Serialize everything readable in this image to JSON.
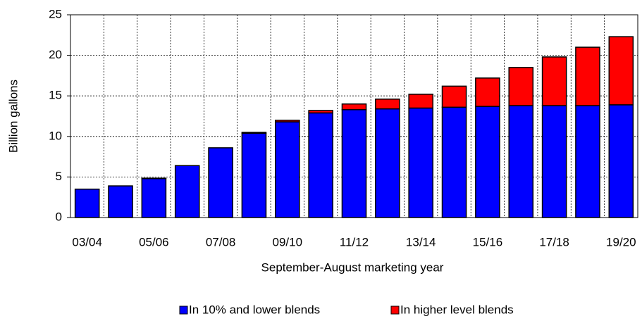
{
  "chart_data": {
    "type": "stacked_bar",
    "categories": [
      "03/04",
      null,
      "05/06",
      null,
      "07/08",
      null,
      "09/10",
      null,
      "11/12",
      null,
      "13/14",
      null,
      "15/16",
      null,
      "17/18",
      null,
      "19/20"
    ],
    "series": [
      {
        "name": "In 10% and lower blends",
        "color": "#0000ff",
        "values": [
          3.5,
          3.9,
          4.8,
          6.4,
          8.6,
          10.4,
          11.8,
          12.9,
          13.3,
          13.4,
          13.5,
          13.6,
          13.7,
          13.8,
          13.8,
          13.8,
          13.9
        ]
      },
      {
        "name": "In higher level blends",
        "color": "#ff0000",
        "values": [
          0,
          0,
          0.05,
          0,
          0,
          0.1,
          0.2,
          0.3,
          0.7,
          1.2,
          1.7,
          2.6,
          3.5,
          4.7,
          6.0,
          7.2,
          8.4
        ]
      }
    ],
    "x_label": "September-August marketing year",
    "y_label": "Billion gallons",
    "ylim": [
      0,
      25
    ],
    "yticks": [
      0,
      5,
      10,
      15,
      20,
      25
    ],
    "grid": true,
    "legend": "bottom"
  }
}
